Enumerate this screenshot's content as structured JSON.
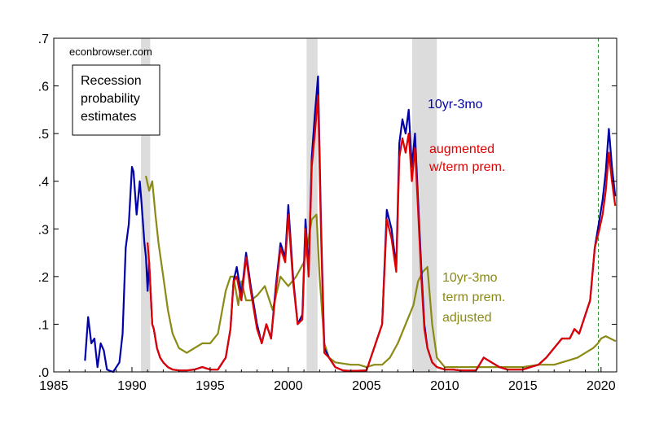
{
  "chart_data": {
    "type": "line",
    "title": "",
    "xlabel": "",
    "ylabel": "",
    "watermark": "econbrowser.com",
    "legend_box": [
      "Recession",
      "probability",
      "estimates"
    ],
    "xlim": [
      1985,
      2021
    ],
    "ylim": [
      0,
      0.7
    ],
    "x_ticks": [
      1985,
      1990,
      1995,
      2000,
      2005,
      2010,
      2015,
      2020
    ],
    "x_tick_labels": [
      "1985",
      "1990",
      "1995",
      "2000",
      "2005",
      "2010",
      "2015",
      "2020"
    ],
    "y_ticks": [
      0,
      0.1,
      0.2,
      0.3,
      0.4,
      0.5,
      0.6,
      0.7
    ],
    "y_tick_labels": [
      ".0",
      ".1",
      ".2",
      ".3",
      ".4",
      ".5",
      ".6",
      ".7"
    ],
    "recessions": [
      [
        1990.58,
        1991.17
      ],
      [
        2001.17,
        2001.87
      ],
      [
        2007.92,
        2009.5
      ]
    ],
    "vline": {
      "x": 2019.83,
      "color": "#2e8b2e"
    },
    "series": [
      {
        "name": "10yr-3mo",
        "label_lines": [
          "10yr-3mo"
        ],
        "color": "#0000a8",
        "x": [
          1987.0,
          1987.2,
          1987.4,
          1987.6,
          1987.8,
          1988.0,
          1988.2,
          1988.4,
          1988.6,
          1988.8,
          1989.0,
          1989.2,
          1989.4,
          1989.6,
          1989.8,
          1990.0,
          1990.1,
          1990.3,
          1990.5,
          1990.6,
          1990.8,
          1990.9,
          1991.0,
          1991.1,
          1991.3,
          1991.4,
          1991.6,
          1991.8,
          1992.0,
          1992.3,
          1992.6,
          1993.0,
          1993.5,
          1994.0,
          1994.5,
          1995.0,
          1995.5,
          1996.0,
          1996.3,
          1996.5,
          1996.7,
          1997.0,
          1997.3,
          1997.6,
          1998.0,
          1998.3,
          1998.6,
          1998.9,
          1999.2,
          1999.5,
          1999.8,
          2000.0,
          2000.3,
          2000.6,
          2000.9,
          2001.1,
          2001.3,
          2001.5,
          2001.7,
          2001.9,
          2002.1,
          2002.3,
          2002.6,
          2003.0,
          2003.5,
          2004.0,
          2005.0,
          2006.0,
          2006.3,
          2006.6,
          2006.9,
          2007.1,
          2007.3,
          2007.5,
          2007.7,
          2007.9,
          2008.1,
          2008.3,
          2008.5,
          2008.7,
          2008.9,
          2009.2,
          2009.5,
          2010.0,
          2010.5,
          2011.0,
          2012.0,
          2012.5,
          2013.0,
          2013.5,
          2014.0,
          2014.5,
          2015.0,
          2015.5,
          2016.0,
          2016.5,
          2017.0,
          2017.5,
          2018.0,
          2018.3,
          2018.6,
          2019.0,
          2019.3,
          2019.6,
          2019.9,
          2020.1,
          2020.3,
          2020.5,
          2020.7,
          2020.9
        ],
        "y": [
          0.025,
          0.115,
          0.06,
          0.07,
          0.01,
          0.06,
          0.045,
          0.005,
          0.002,
          0.0,
          0.01,
          0.02,
          0.08,
          0.26,
          0.31,
          0.43,
          0.42,
          0.33,
          0.4,
          0.36,
          0.27,
          0.24,
          0.17,
          0.23,
          0.1,
          0.09,
          0.05,
          0.03,
          0.02,
          0.01,
          0.005,
          0.003,
          0.003,
          0.005,
          0.01,
          0.005,
          0.005,
          0.03,
          0.09,
          0.19,
          0.22,
          0.16,
          0.25,
          0.18,
          0.1,
          0.06,
          0.1,
          0.07,
          0.18,
          0.27,
          0.24,
          0.35,
          0.2,
          0.1,
          0.12,
          0.32,
          0.21,
          0.45,
          0.54,
          0.62,
          0.3,
          0.05,
          0.03,
          0.01,
          0.003,
          0.002,
          0.003,
          0.1,
          0.34,
          0.3,
          0.22,
          0.48,
          0.53,
          0.5,
          0.55,
          0.43,
          0.5,
          0.36,
          0.22,
          0.1,
          0.05,
          0.02,
          0.01,
          0.005,
          0.005,
          0.003,
          0.003,
          0.03,
          0.02,
          0.01,
          0.005,
          0.005,
          0.005,
          0.01,
          0.015,
          0.03,
          0.05,
          0.07,
          0.07,
          0.09,
          0.08,
          0.12,
          0.15,
          0.26,
          0.32,
          0.36,
          0.42,
          0.51,
          0.43,
          0.37
        ]
      },
      {
        "name": "augmented w/term prem.",
        "label_lines": [
          "augmented",
          "w/term prem."
        ],
        "color": "#e00000",
        "x": [
          1991.0,
          1991.1,
          1991.3,
          1991.4,
          1991.6,
          1991.8,
          1992.0,
          1992.3,
          1992.6,
          1993.0,
          1993.5,
          1994.0,
          1994.5,
          1995.0,
          1995.5,
          1996.0,
          1996.3,
          1996.5,
          1996.7,
          1997.0,
          1997.3,
          1997.6,
          1998.0,
          1998.3,
          1998.6,
          1998.9,
          1999.2,
          1999.5,
          1999.8,
          2000.0,
          2000.3,
          2000.6,
          2000.9,
          2001.1,
          2001.3,
          2001.5,
          2001.7,
          2001.9,
          2002.1,
          2002.3,
          2002.6,
          2003.0,
          2003.5,
          2004.0,
          2005.0,
          2006.0,
          2006.3,
          2006.6,
          2006.9,
          2007.1,
          2007.3,
          2007.5,
          2007.7,
          2007.9,
          2008.1,
          2008.3,
          2008.5,
          2008.7,
          2008.9,
          2009.2,
          2009.5,
          2010.0,
          2010.5,
          2011.0,
          2012.0,
          2012.5,
          2013.0,
          2013.5,
          2014.0,
          2014.5,
          2015.0,
          2015.5,
          2016.0,
          2016.5,
          2017.0,
          2017.5,
          2018.0,
          2018.3,
          2018.6,
          2019.0,
          2019.3,
          2019.6,
          2019.9,
          2020.1,
          2020.3,
          2020.5,
          2020.7,
          2020.9
        ],
        "y": [
          0.27,
          0.23,
          0.1,
          0.09,
          0.05,
          0.03,
          0.02,
          0.01,
          0.005,
          0.003,
          0.003,
          0.005,
          0.01,
          0.005,
          0.005,
          0.03,
          0.09,
          0.19,
          0.2,
          0.15,
          0.24,
          0.17,
          0.09,
          0.06,
          0.1,
          0.07,
          0.17,
          0.26,
          0.23,
          0.33,
          0.19,
          0.1,
          0.11,
          0.3,
          0.2,
          0.43,
          0.5,
          0.58,
          0.28,
          0.04,
          0.03,
          0.01,
          0.003,
          0.002,
          0.003,
          0.1,
          0.32,
          0.28,
          0.21,
          0.45,
          0.49,
          0.46,
          0.5,
          0.4,
          0.47,
          0.34,
          0.2,
          0.09,
          0.05,
          0.02,
          0.01,
          0.005,
          0.005,
          0.003,
          0.003,
          0.03,
          0.02,
          0.01,
          0.005,
          0.005,
          0.005,
          0.01,
          0.015,
          0.03,
          0.05,
          0.07,
          0.07,
          0.09,
          0.08,
          0.12,
          0.15,
          0.26,
          0.3,
          0.33,
          0.38,
          0.46,
          0.4,
          0.35
        ]
      },
      {
        "name": "10yr-3mo term prem. adjusted",
        "label_lines": [
          "10yr-3mo",
          "term prem.",
          "adjusted"
        ],
        "color": "#8a8a14",
        "x": [
          1990.9,
          1991.1,
          1991.3,
          1991.5,
          1991.7,
          1992.0,
          1992.3,
          1992.6,
          1993.0,
          1993.5,
          1994.0,
          1994.5,
          1995.0,
          1995.5,
          1996.0,
          1996.3,
          1996.5,
          1996.8,
          1997.0,
          1997.3,
          1997.6,
          1998.0,
          1998.5,
          1999.0,
          1999.5,
          2000.0,
          2000.5,
          2001.0,
          2001.3,
          2001.5,
          2001.8,
          2002.0,
          2002.3,
          2002.6,
          2003.0,
          2004.0,
          2004.5,
          2005.0,
          2005.5,
          2006.0,
          2006.5,
          2007.0,
          2007.5,
          2008.0,
          2008.3,
          2008.6,
          2008.9,
          2009.2,
          2009.5,
          2010.0,
          2011.0,
          2012.0,
          2013.0,
          2014.0,
          2015.0,
          2016.0,
          2017.0,
          2018.0,
          2018.5,
          2019.0,
          2019.5,
          2019.8,
          2020.0,
          2020.3,
          2020.6,
          2020.9
        ],
        "y": [
          0.41,
          0.38,
          0.4,
          0.33,
          0.27,
          0.2,
          0.13,
          0.08,
          0.05,
          0.04,
          0.05,
          0.06,
          0.06,
          0.08,
          0.17,
          0.2,
          0.2,
          0.14,
          0.19,
          0.15,
          0.15,
          0.16,
          0.18,
          0.13,
          0.2,
          0.18,
          0.2,
          0.23,
          0.28,
          0.32,
          0.33,
          0.2,
          0.06,
          0.03,
          0.02,
          0.015,
          0.015,
          0.01,
          0.015,
          0.015,
          0.03,
          0.06,
          0.1,
          0.14,
          0.19,
          0.21,
          0.22,
          0.1,
          0.03,
          0.01,
          0.01,
          0.01,
          0.01,
          0.01,
          0.01,
          0.015,
          0.015,
          0.025,
          0.03,
          0.04,
          0.05,
          0.06,
          0.07,
          0.075,
          0.07,
          0.065
        ]
      }
    ]
  }
}
